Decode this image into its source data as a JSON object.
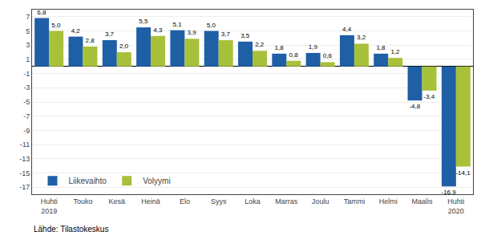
{
  "chart_data": {
    "type": "bar",
    "categories": [
      "Huhti\n2019",
      "Touko",
      "Kesä",
      "Heinä",
      "Elo",
      "Syys",
      "Loka",
      "Marras",
      "Joulu",
      "Tammi",
      "Helmi",
      "Maalis",
      "Huhti\n2020"
    ],
    "series": [
      {
        "name": "Liikevaihto",
        "color": "#1f5fa6",
        "values": [
          6.8,
          4.2,
          3.7,
          5.5,
          5.1,
          5.0,
          3.5,
          1.8,
          1.9,
          4.4,
          1.8,
          -4.8,
          -16.9
        ],
        "value_labels": [
          "6,8",
          "4,2",
          "3,7",
          "5,5",
          "5,1",
          "5,0",
          "3,5",
          "1,8",
          "1,9",
          "4,4",
          "1,8",
          "-4,8",
          "-16,9"
        ]
      },
      {
        "name": "Volyymi",
        "color": "#a8c13a",
        "values": [
          5.0,
          2.8,
          2.0,
          4.3,
          3.9,
          3.7,
          2.2,
          0.8,
          0.6,
          3.2,
          1.2,
          -3.4,
          -14.1
        ],
        "value_labels": [
          "5,0",
          "2,8",
          "2,0",
          "4,3",
          "3,9",
          "3,7",
          "2,2",
          "0,8",
          "0,6",
          "3,2",
          "1,2",
          "-3,4",
          "-14,1"
        ]
      }
    ],
    "ylim": [
      -18,
      8
    ],
    "yticks": [
      -17,
      -15,
      -13,
      -11,
      -9,
      -7,
      -5,
      -3,
      -1,
      1,
      3,
      5,
      7
    ],
    "grid": true,
    "legend": "lower left",
    "data_labels": true,
    "annotations": [
      "Lähde: Tilastokeskus"
    ]
  }
}
